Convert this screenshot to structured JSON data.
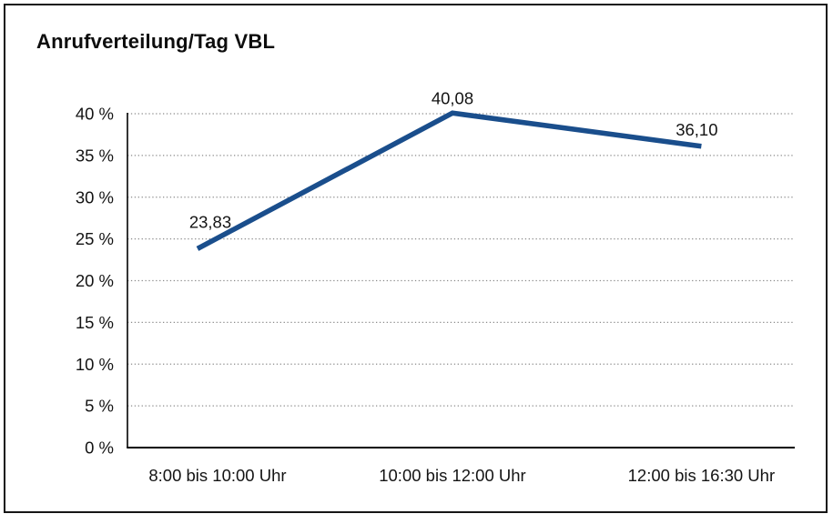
{
  "title": "Anrufverteilung/Tag VBL",
  "colors": {
    "line": "#1a4e8c",
    "grid": "#8c8c8c",
    "axis": "#000000",
    "frame_border": "#161616",
    "background": "#ffffff",
    "text": "#141414"
  },
  "chart_data": {
    "type": "line",
    "title": "Anrufverteilung/Tag VBL",
    "categories": [
      "8:00 bis 10:00 Uhr",
      "10:00 bis 12:00 Uhr",
      "12:00 bis 16:30 Uhr"
    ],
    "values": [
      23.83,
      40.08,
      36.1
    ],
    "point_labels": [
      "23,83",
      "40,08",
      "36,10"
    ],
    "xlabel": "",
    "ylabel": "",
    "ylim": [
      0,
      40
    ],
    "ytick_step": 5,
    "ytick_labels": [
      "0 %",
      "5 %",
      "10 %",
      "15 %",
      "20 %",
      "25 %",
      "30 %",
      "35 %",
      "40 %"
    ],
    "grid": "horizontal-dotted",
    "legend": "none",
    "series_name": "Anrufverteilung"
  }
}
